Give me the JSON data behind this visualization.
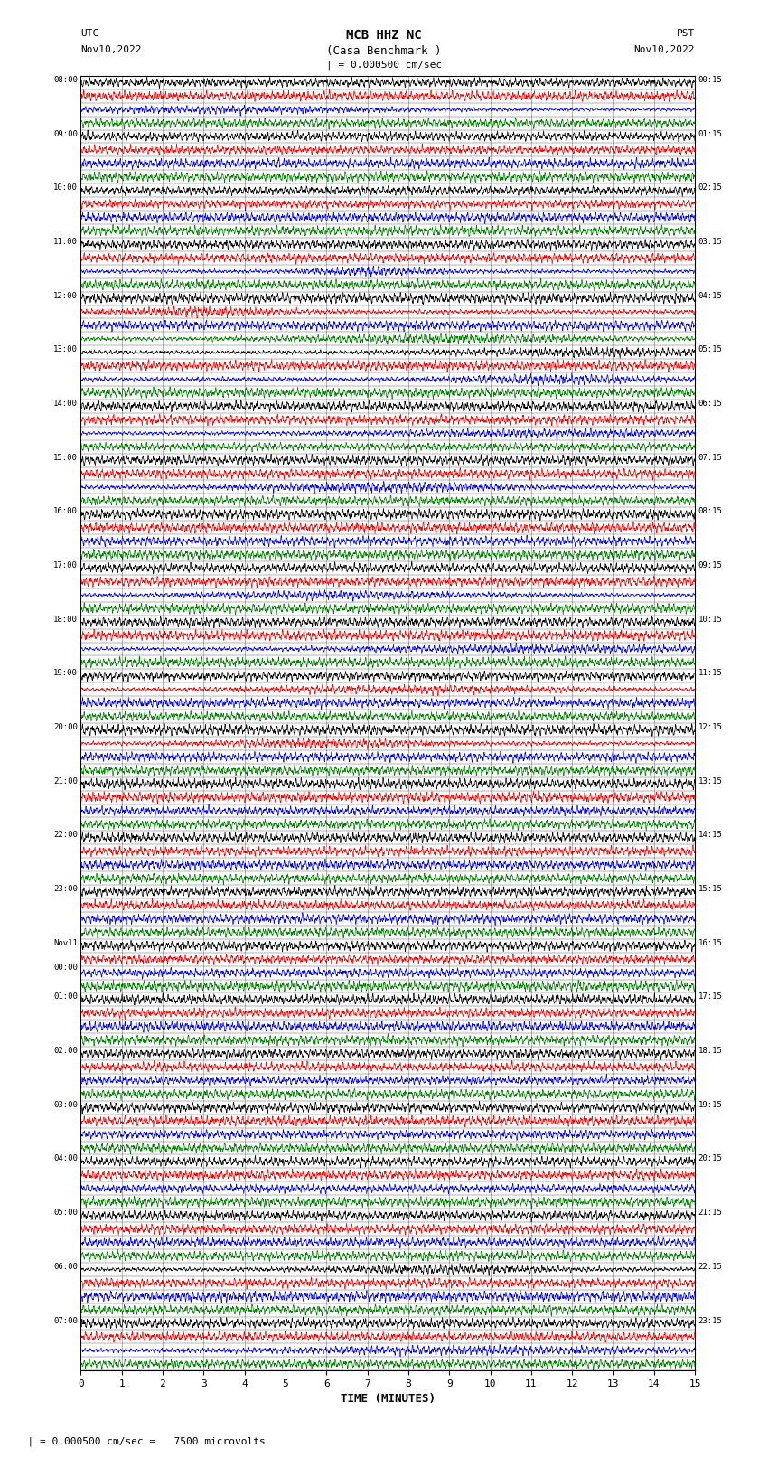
{
  "title_line1": "MCB HHZ NC",
  "title_line2": "(Casa Benchmark )",
  "title_line3": "| = 0.000500 cm/sec",
  "left_header_line1": "UTC",
  "left_header_line2": "Nov10,2022",
  "right_header_line1": "PST",
  "right_header_line2": "Nov10,2022",
  "xlabel": "TIME (MINUTES)",
  "footnote": "  | = 0.000500 cm/sec =   7500 microvolts",
  "utc_labels": [
    "08:00",
    "09:00",
    "10:00",
    "11:00",
    "12:00",
    "13:00",
    "14:00",
    "15:00",
    "16:00",
    "17:00",
    "18:00",
    "19:00",
    "20:00",
    "21:00",
    "22:00",
    "23:00",
    "Nov11\n00:00",
    "01:00",
    "02:00",
    "03:00",
    "04:00",
    "05:00",
    "06:00",
    "07:00"
  ],
  "pst_labels": [
    "00:15",
    "01:15",
    "02:15",
    "03:15",
    "04:15",
    "05:15",
    "06:15",
    "07:15",
    "08:15",
    "09:15",
    "10:15",
    "11:15",
    "12:15",
    "13:15",
    "14:15",
    "15:15",
    "16:15",
    "17:15",
    "18:15",
    "19:15",
    "20:15",
    "21:15",
    "22:15",
    "23:15"
  ],
  "n_hours": 24,
  "n_traces_per_hour": 4,
  "trace_colors": [
    "black",
    "red",
    "blue",
    "green"
  ],
  "xlim": [
    0,
    15
  ],
  "xticks": [
    0,
    1,
    2,
    3,
    4,
    5,
    6,
    7,
    8,
    9,
    10,
    11,
    12,
    13,
    14,
    15
  ],
  "fig_width": 8.5,
  "fig_height": 16.13,
  "dpi": 100,
  "bg_color": "white",
  "seed": 42
}
